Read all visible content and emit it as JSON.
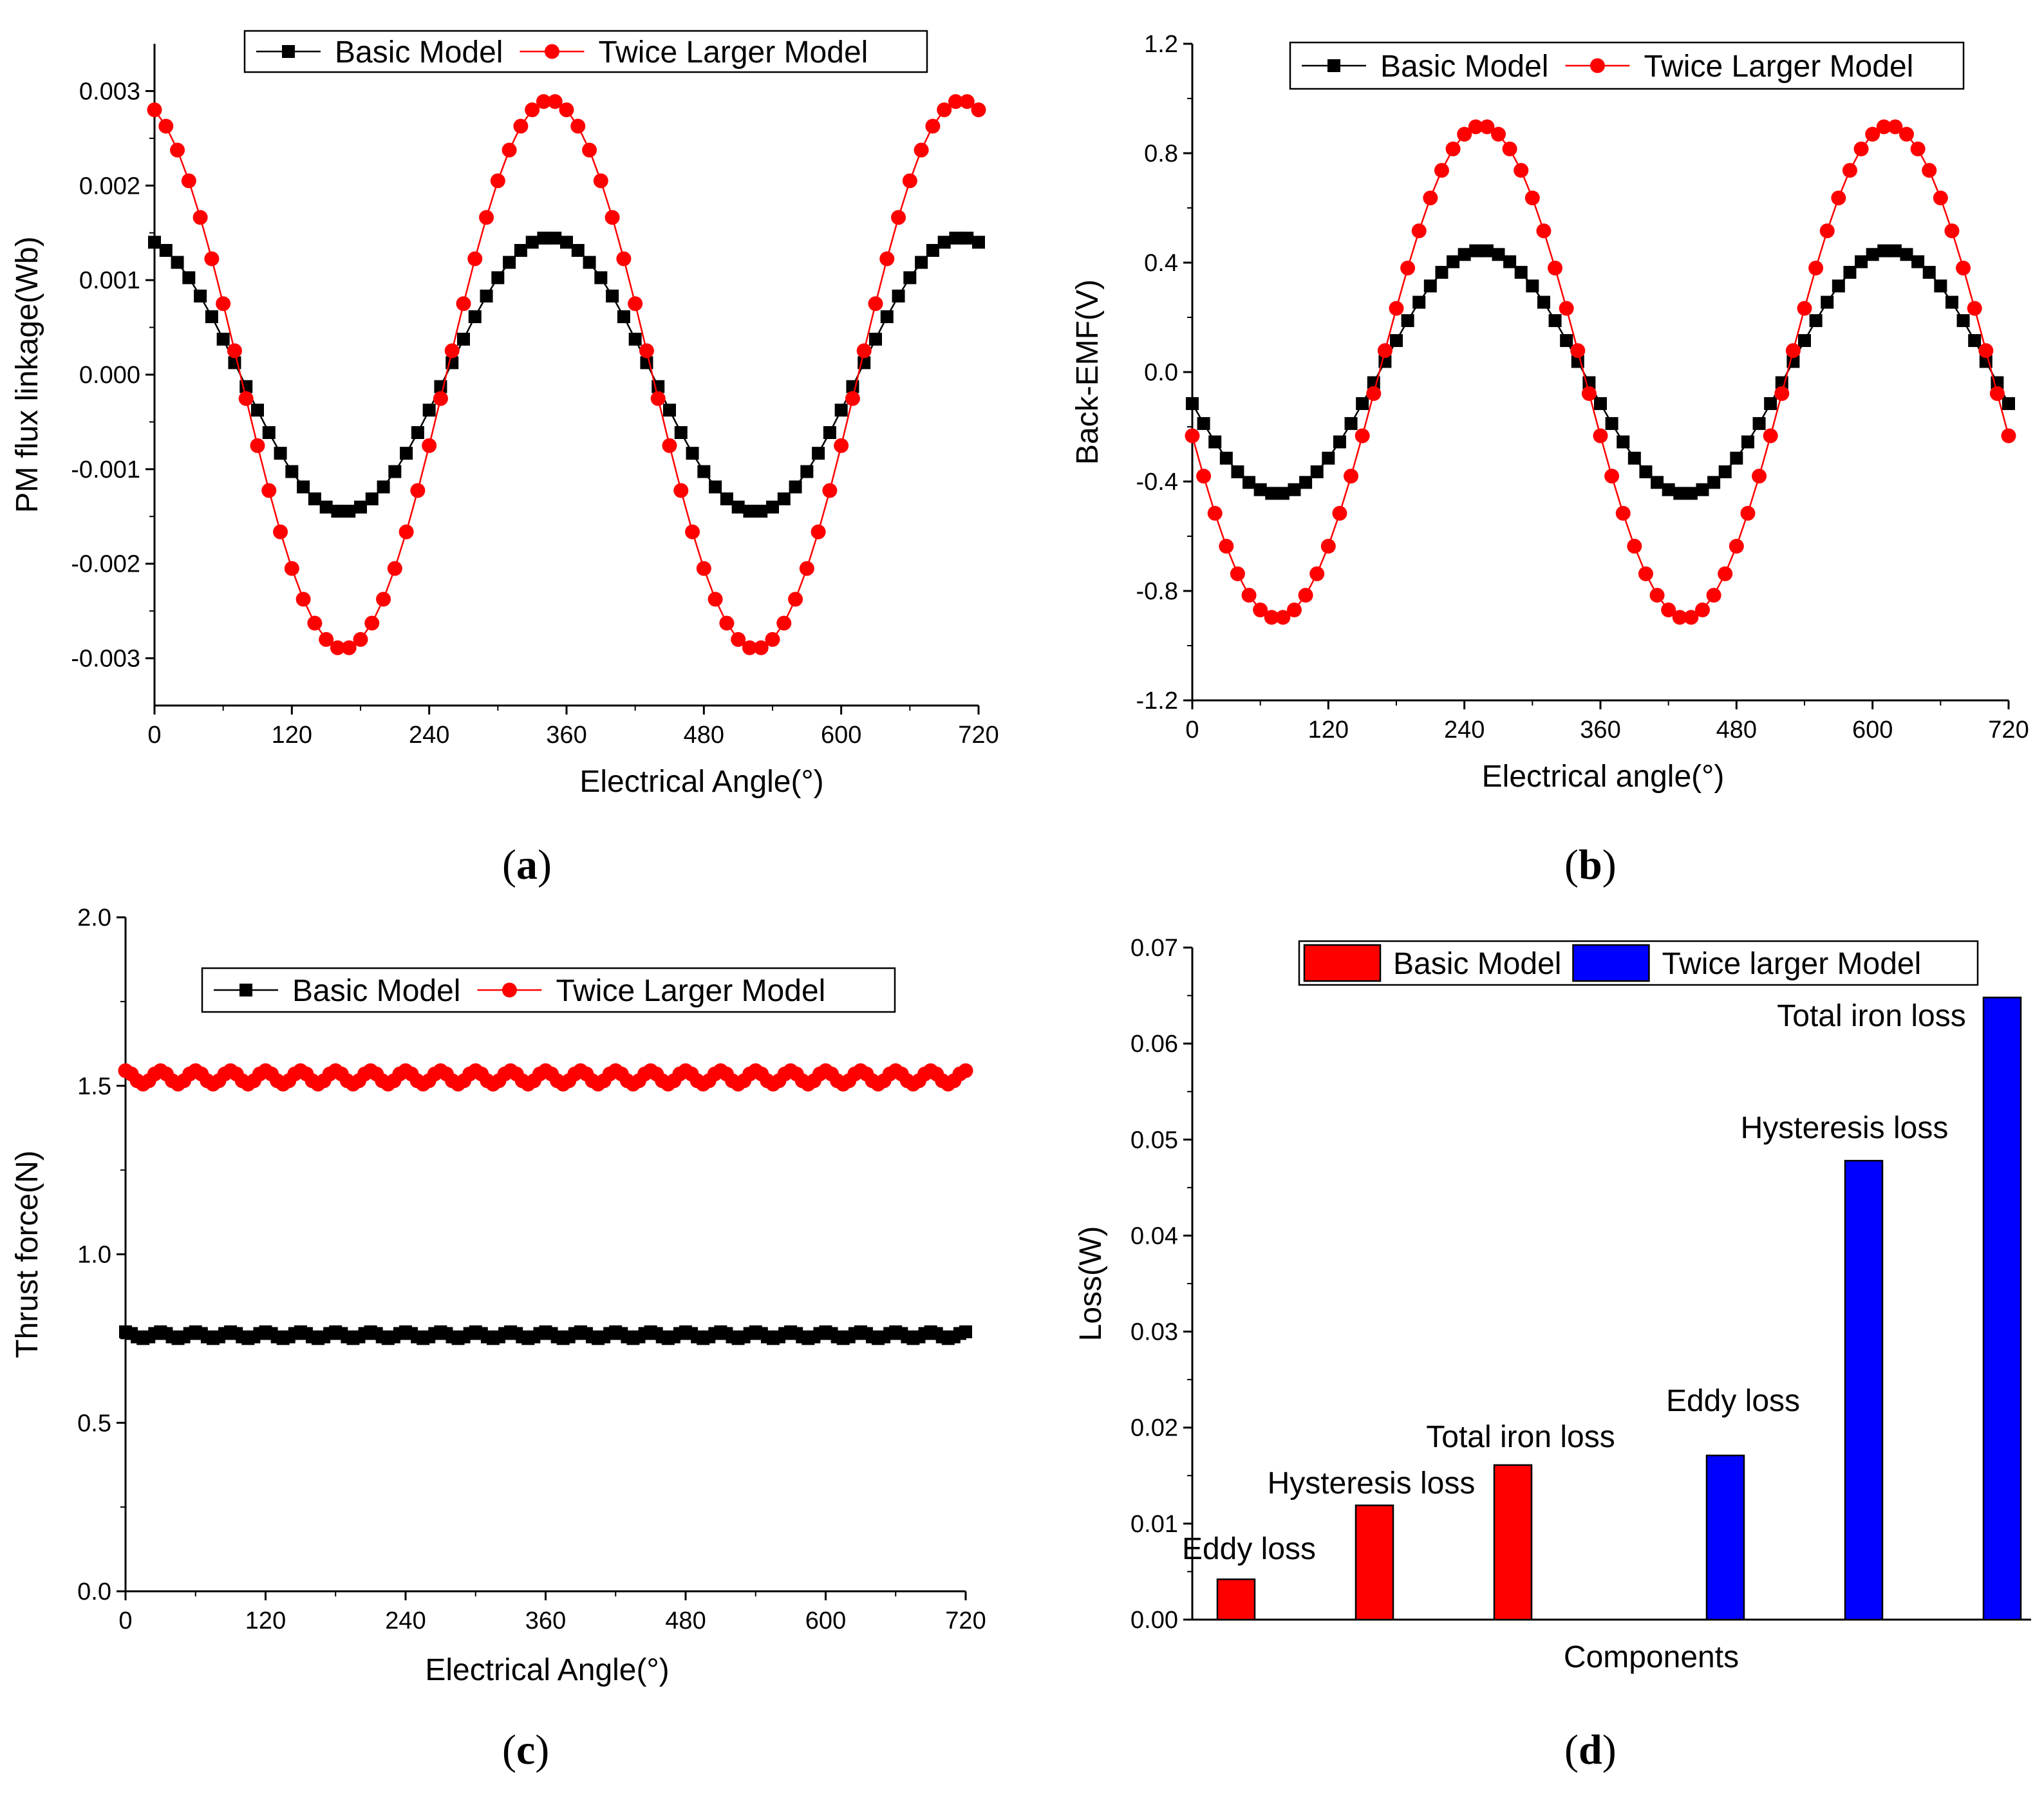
{
  "chart_data": [
    {
      "id": "a",
      "panel_label": "a",
      "type": "line",
      "xlabel": "Electrical Angle(°)",
      "ylabel": "PM flux linkage(Wb)",
      "xlim": [
        0,
        720
      ],
      "ylim": [
        -0.0035,
        0.0035
      ],
      "xticks": [
        0,
        120,
        240,
        360,
        480,
        600,
        720
      ],
      "xtick_labels": [
        "0",
        "120",
        "240",
        "360",
        "480",
        "600",
        "720"
      ],
      "yticks": [
        -0.003,
        -0.002,
        -0.001,
        0,
        0.001,
        0.002,
        0.003
      ],
      "ytick_labels": [
        "-0.003",
        "-0.002",
        "-0.001",
        "0.000",
        "0.001",
        "0.002",
        "0.003"
      ],
      "legend_position": "top",
      "x": {
        "start": 0,
        "stop": 720,
        "step": 10
      },
      "series": [
        {
          "name": "Basic Model",
          "color": "#000000",
          "marker": "square",
          "amplitude": 0.00145,
          "period_deg": 360,
          "phase_deg": 345,
          "offset": 0
        },
        {
          "name": "Twice Larger Model",
          "color": "#ff0000",
          "marker": "circle",
          "amplitude": 0.0029,
          "period_deg": 360,
          "phase_deg": 345,
          "offset": 0
        }
      ]
    },
    {
      "id": "b",
      "panel_label": "b",
      "type": "line",
      "xlabel": "Electrical angle(°)",
      "ylabel": "Back-EMF(V)",
      "xlim": [
        0,
        720
      ],
      "ylim": [
        -1.2,
        1.2
      ],
      "xticks": [
        0,
        120,
        240,
        360,
        480,
        600,
        720
      ],
      "xtick_labels": [
        "0",
        "120",
        "240",
        "360",
        "480",
        "600",
        "720"
      ],
      "yticks": [
        -1.2,
        -0.8,
        -0.4,
        0,
        0.4,
        0.8,
        1.2
      ],
      "ytick_labels": [
        "-1.2",
        "-0.8",
        "-0.4",
        "0.0",
        "0.4",
        "0.8",
        "1.2"
      ],
      "legend_position": "top",
      "x": {
        "start": 0,
        "stop": 720,
        "step": 10
      },
      "series": [
        {
          "name": "Basic Model",
          "color": "#000000",
          "marker": "square",
          "amplitude": 0.445,
          "period_deg": 360,
          "phase_deg": 255,
          "offset": 0
        },
        {
          "name": "Twice Larger Model",
          "color": "#ff0000",
          "marker": "circle",
          "amplitude": 0.9,
          "period_deg": 360,
          "phase_deg": 255,
          "offset": 0
        }
      ]
    },
    {
      "id": "c",
      "panel_label": "c",
      "type": "line",
      "xlabel": "Electrical Angle(°)",
      "ylabel": "Thrust force(N)",
      "xlim": [
        0,
        720
      ],
      "ylim": [
        0,
        2.0
      ],
      "xticks": [
        0,
        120,
        240,
        360,
        480,
        600,
        720
      ],
      "xtick_labels": [
        "0",
        "120",
        "240",
        "360",
        "480",
        "600",
        "720"
      ],
      "yticks": [
        0,
        0.5,
        1.0,
        1.5,
        2.0
      ],
      "ytick_labels": [
        "0.0",
        "0.5",
        "1.0",
        "1.5",
        "2.0"
      ],
      "legend_position": "top",
      "x": {
        "start": 0,
        "stop": 720,
        "step": 5
      },
      "series": [
        {
          "name": "Basic Model",
          "color": "#000000",
          "marker": "square",
          "amplitude": 0.01,
          "period_deg": 30,
          "phase_deg": 0,
          "offset": 0.76
        },
        {
          "name": "Twice Larger Model",
          "color": "#ff0000",
          "marker": "circle",
          "amplitude": 0.02,
          "period_deg": 30,
          "phase_deg": 0,
          "offset": 1.525
        }
      ]
    },
    {
      "id": "d",
      "panel_label": "d",
      "type": "bar",
      "xlabel": "Components",
      "ylabel": "Loss(W)",
      "ylim": [
        0,
        0.07
      ],
      "yticks": [
        0,
        0.01,
        0.02,
        0.03,
        0.04,
        0.05,
        0.06,
        0.07
      ],
      "ytick_labels": [
        "0.00",
        "0.01",
        "0.02",
        "0.03",
        "0.04",
        "0.05",
        "0.06",
        "0.07"
      ],
      "legend_position": "top",
      "legend": [
        {
          "name": "Basic Model",
          "color": "#ff0000"
        },
        {
          "name": "Twice larger Model",
          "color": "#0000ff"
        }
      ],
      "bars": [
        {
          "label": "Eddy loss",
          "value": 0.0042,
          "series": "Basic Model",
          "color": "#ff0000"
        },
        {
          "label": "Hysteresis loss",
          "value": 0.0119,
          "series": "Basic Model",
          "color": "#ff0000"
        },
        {
          "label": "Total iron loss",
          "value": 0.0161,
          "series": "Basic Model",
          "color": "#ff0000"
        },
        {
          "label": "Eddy loss",
          "value": 0.0171,
          "series": "Twice larger Model",
          "color": "#0000ff"
        },
        {
          "label": "Hysteresis loss",
          "value": 0.0478,
          "series": "Twice larger Model",
          "color": "#0000ff"
        },
        {
          "label": "Total iron loss",
          "value": 0.0648,
          "series": "Twice larger Model",
          "color": "#0000ff"
        }
      ]
    }
  ]
}
